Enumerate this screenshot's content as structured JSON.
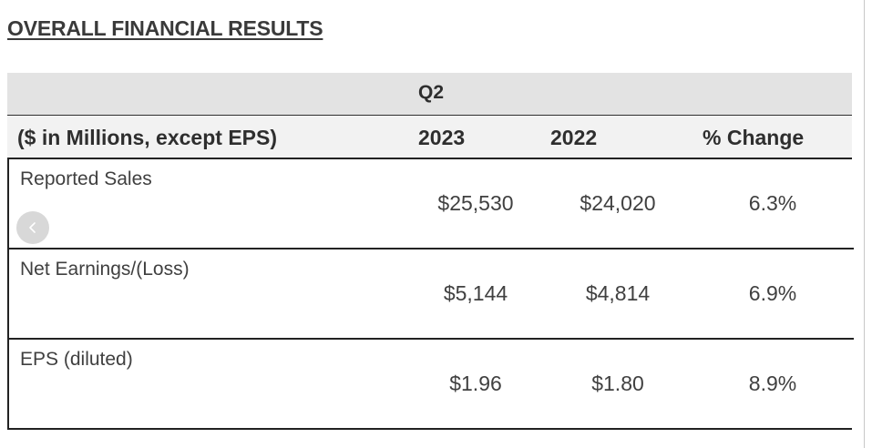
{
  "title": "OVERALL FINANCIAL RESULTS",
  "table": {
    "period": "Q2",
    "headers": {
      "label": "($ in Millions, except EPS)",
      "year_current": "2023",
      "year_prior": "2022",
      "change": "% Change"
    },
    "rows": [
      {
        "label": "Reported Sales",
        "current": "$25,530",
        "prior": "$24,020",
        "change": "6.3%"
      },
      {
        "label": "Net Earnings/(Loss)",
        "current": "$5,144",
        "prior": "$4,814",
        "change": "6.9%"
      },
      {
        "label": "EPS (diluted)",
        "current": "$1.96",
        "prior": "$1.80",
        "change": "8.9%"
      }
    ]
  },
  "icons": {
    "carousel_prev": "chevron-left-icon"
  }
}
